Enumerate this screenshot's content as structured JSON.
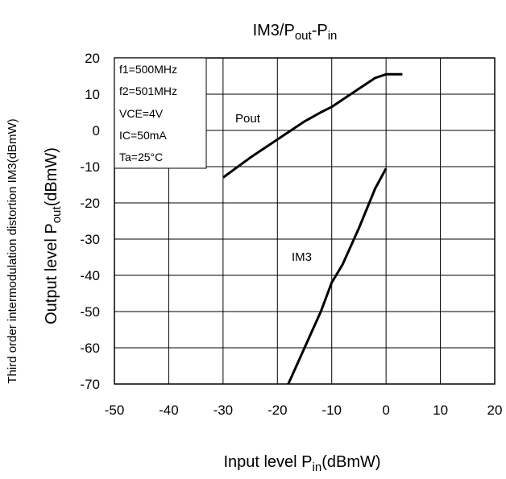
{
  "chart_data": {
    "type": "line",
    "title": {
      "main": "IM3/P",
      "sub1": "out",
      "mid": "-P",
      "sub2": "in"
    },
    "xlabel": {
      "main": "Input level P",
      "sub": "in",
      "unit": "(dBmW)"
    },
    "ylabel_outer": "Third order intermodulation distortion IM3(dBmW)",
    "ylabel_inner": {
      "main": "Output level P",
      "sub": "out",
      "unit": "(dBmW)"
    },
    "xlim": [
      -50,
      20
    ],
    "ylim": [
      -70,
      20
    ],
    "x_ticks": [
      -50,
      -40,
      -30,
      -20,
      -10,
      0,
      10,
      20
    ],
    "y_ticks": [
      20,
      10,
      0,
      -10,
      -20,
      -30,
      -40,
      -50,
      -60,
      -70
    ],
    "grid": true,
    "conditions": [
      "f1=500MHz",
      "f2=501MHz",
      "VCE=4V",
      "IC=50mA",
      "Ta=25°C"
    ],
    "series": [
      {
        "name": "Pout",
        "x": [
          -30,
          -25,
          -20,
          -15,
          -12,
          -10,
          -8,
          -5,
          -2,
          0,
          3
        ],
        "y": [
          -13,
          -7.5,
          -2.5,
          2.5,
          5,
          6.5,
          8.5,
          11.5,
          14.5,
          15.5,
          15.5
        ]
      },
      {
        "name": "IM3",
        "x": [
          -18,
          -15,
          -12,
          -10,
          -8,
          -5,
          -2,
          0
        ],
        "y": [
          -70,
          -60,
          -50,
          -42,
          -37,
          -27,
          -16,
          -10.5
        ]
      }
    ]
  }
}
